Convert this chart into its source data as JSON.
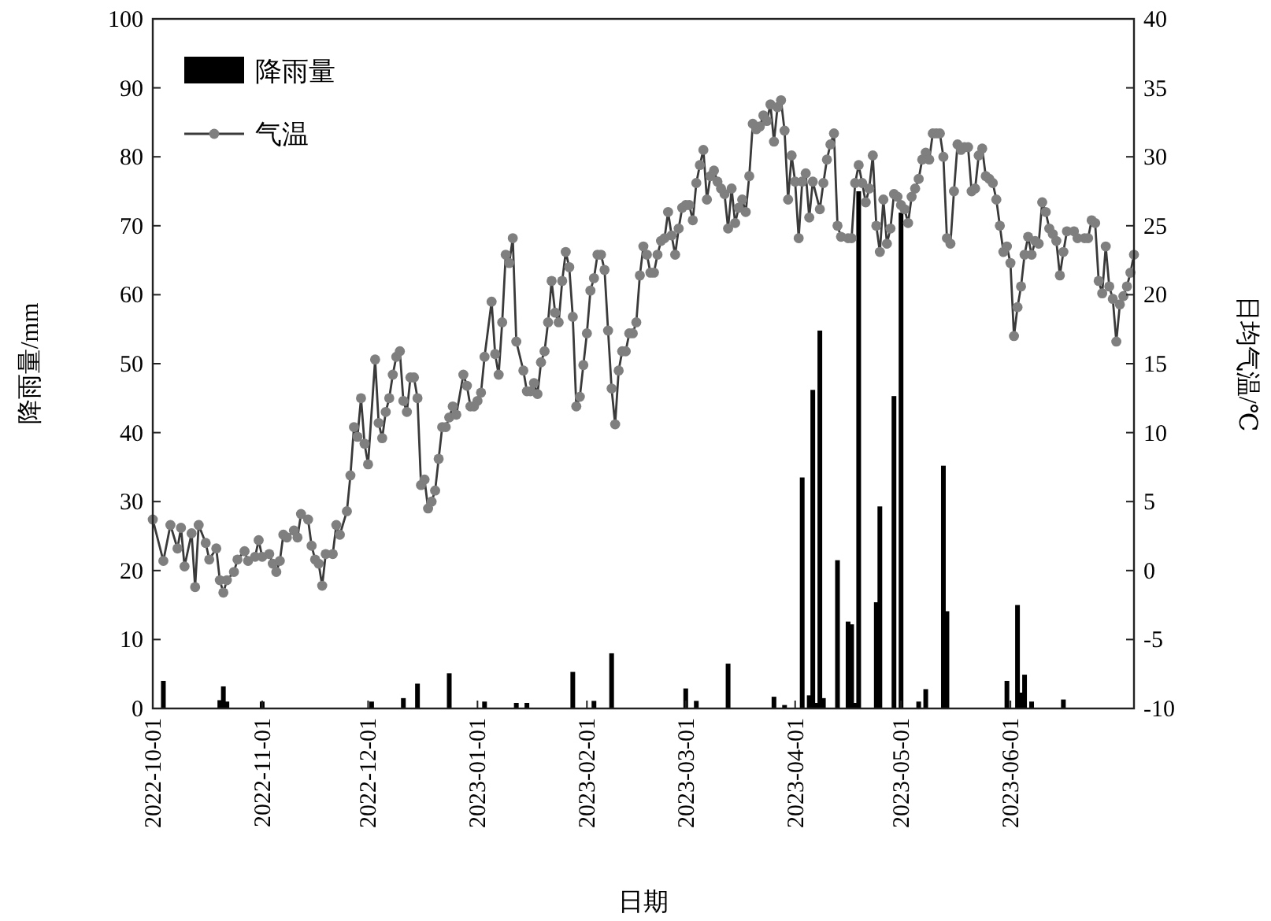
{
  "chart_data": {
    "type": "bar",
    "xlabel": "日期",
    "ylabel": "降雨量/mm",
    "y2label": "日均气温/℃",
    "legend": "top left",
    "xlim": [
      "2022-10-01",
      "2023-07-06"
    ],
    "xticks": [
      "2022-10-01",
      "2022-11-01",
      "2022-12-01",
      "2023-01-01",
      "2023-02-01",
      "2023-03-01",
      "2023-04-01",
      "2023-05-01",
      "2023-06-01"
    ],
    "ylim": [
      0,
      100
    ],
    "yticks": [
      0,
      10,
      20,
      30,
      40,
      50,
      60,
      70,
      80,
      90,
      100
    ],
    "y2lim": [
      -10,
      40
    ],
    "y2ticks": [
      -10,
      -5,
      0,
      5,
      10,
      15,
      20,
      25,
      30,
      35,
      40
    ],
    "series": [
      {
        "name": "降雨量",
        "color": "#000000",
        "x": [
          "2022-10-04",
          "2022-10-20",
          "2022-10-21",
          "2022-10-22",
          "2022-11-01",
          "2022-12-02",
          "2022-12-11",
          "2022-12-15",
          "2022-12-24",
          "2023-01-03",
          "2023-01-12",
          "2023-01-15",
          "2023-01-28",
          "2023-02-03",
          "2023-02-08",
          "2023-03-01",
          "2023-03-04",
          "2023-03-13",
          "2023-03-26",
          "2023-03-29",
          "2023-04-03",
          "2023-04-05",
          "2023-04-06",
          "2023-04-07",
          "2023-04-08",
          "2023-04-09",
          "2023-04-13",
          "2023-04-16",
          "2023-04-17",
          "2023-04-18",
          "2023-04-19",
          "2023-04-24",
          "2023-04-25",
          "2023-04-29",
          "2023-05-01",
          "2023-05-06",
          "2023-05-08",
          "2023-05-13",
          "2023-05-14",
          "2023-05-31",
          "2023-06-03",
          "2023-06-04",
          "2023-06-05",
          "2023-06-07",
          "2023-06-16"
        ],
        "values": [
          4.0,
          1.2,
          3.2,
          1.0,
          1.0,
          1.0,
          1.5,
          3.6,
          5.1,
          1.0,
          0.8,
          0.8,
          5.3,
          1.1,
          8.0,
          2.9,
          1.1,
          6.5,
          1.7,
          0.5,
          33.5,
          1.9,
          46.2,
          0.8,
          54.8,
          1.5,
          21.5,
          12.6,
          12.2,
          0.8,
          75.0,
          15.4,
          29.3,
          45.3,
          71.9,
          1.0,
          2.8,
          35.2,
          14.1,
          4.0,
          15.0,
          2.3,
          4.9,
          1.0,
          1.3
        ]
      },
      {
        "name": "气温",
        "type": "line",
        "axis": "y2",
        "color": "#7f7f7f",
        "marker": "circle",
        "x": [
          "2022-10-01",
          "2022-10-04",
          "2022-10-06",
          "2022-10-08",
          "2022-10-09",
          "2022-10-10",
          "2022-10-12",
          "2022-10-13",
          "2022-10-14",
          "2022-10-16",
          "2022-10-17",
          "2022-10-19",
          "2022-10-20",
          "2022-10-21",
          "2022-10-22",
          "2022-10-24",
          "2022-10-25",
          "2022-10-27",
          "2022-10-28",
          "2022-10-30",
          "2022-10-31",
          "2022-11-01",
          "2022-11-03",
          "2022-11-04",
          "2022-11-05",
          "2022-11-06",
          "2022-11-07",
          "2022-11-08",
          "2022-11-10",
          "2022-11-11",
          "2022-11-12",
          "2022-11-14",
          "2022-11-15",
          "2022-11-16",
          "2022-11-17",
          "2022-11-18",
          "2022-11-19",
          "2022-11-21",
          "2022-11-22",
          "2022-11-23",
          "2022-11-25",
          "2022-11-26",
          "2022-11-27",
          "2022-11-28",
          "2022-11-29",
          "2022-11-30",
          "2022-12-01",
          "2022-12-03",
          "2022-12-04",
          "2022-12-05",
          "2022-12-06",
          "2022-12-07",
          "2022-12-08",
          "2022-12-09",
          "2022-12-10",
          "2022-12-11",
          "2022-12-12",
          "2022-12-13",
          "2022-12-14",
          "2022-12-15",
          "2022-12-16",
          "2022-12-17",
          "2022-12-18",
          "2022-12-19",
          "2022-12-20",
          "2022-12-21",
          "2022-12-22",
          "2022-12-23",
          "2022-12-24",
          "2022-12-25",
          "2022-12-26",
          "2022-12-28",
          "2022-12-29",
          "2022-12-30",
          "2022-12-31",
          "2023-01-01",
          "2023-01-02",
          "2023-01-03",
          "2023-01-05",
          "2023-01-06",
          "2023-01-07",
          "2023-01-08",
          "2023-01-09",
          "2023-01-10",
          "2023-01-11",
          "2023-01-12",
          "2023-01-14",
          "2023-01-15",
          "2023-01-16",
          "2023-01-17",
          "2023-01-18",
          "2023-01-19",
          "2023-01-20",
          "2023-01-21",
          "2023-01-22",
          "2023-01-23",
          "2023-01-24",
          "2023-01-25",
          "2023-01-26",
          "2023-01-27",
          "2023-01-28",
          "2023-01-29",
          "2023-01-30",
          "2023-01-31",
          "2023-02-01",
          "2023-02-02",
          "2023-02-03",
          "2023-02-04",
          "2023-02-05",
          "2023-02-06",
          "2023-02-07",
          "2023-02-08",
          "2023-02-09",
          "2023-02-10",
          "2023-02-11",
          "2023-02-12",
          "2023-02-13",
          "2023-02-14",
          "2023-02-15",
          "2023-02-16",
          "2023-02-17",
          "2023-02-18",
          "2023-02-19",
          "2023-02-20",
          "2023-02-21",
          "2023-02-22",
          "2023-02-23",
          "2023-02-24",
          "2023-02-25",
          "2023-02-26",
          "2023-02-27",
          "2023-02-28",
          "2023-03-01",
          "2023-03-02",
          "2023-03-03",
          "2023-03-04",
          "2023-03-05",
          "2023-03-06",
          "2023-03-07",
          "2023-03-08",
          "2023-03-09",
          "2023-03-10",
          "2023-03-11",
          "2023-03-12",
          "2023-03-13",
          "2023-03-14",
          "2023-03-15",
          "2023-03-16",
          "2023-03-17",
          "2023-03-18",
          "2023-03-19",
          "2023-03-20",
          "2023-03-21",
          "2023-03-22",
          "2023-03-23",
          "2023-03-24",
          "2023-03-25",
          "2023-03-26",
          "2023-03-27",
          "2023-03-28",
          "2023-03-29",
          "2023-03-30",
          "2023-03-31",
          "2023-04-01",
          "2023-04-02",
          "2023-04-03",
          "2023-04-04",
          "2023-04-05",
          "2023-04-06",
          "2023-04-08",
          "2023-04-09",
          "2023-04-10",
          "2023-04-11",
          "2023-04-12",
          "2023-04-13",
          "2023-04-14",
          "2023-04-16",
          "2023-04-17",
          "2023-04-18",
          "2023-04-19",
          "2023-04-20",
          "2023-04-21",
          "2023-04-22",
          "2023-04-23",
          "2023-04-24",
          "2023-04-25",
          "2023-04-26",
          "2023-04-27",
          "2023-04-28",
          "2023-04-29",
          "2023-04-30",
          "2023-05-01",
          "2023-05-02",
          "2023-05-03",
          "2023-05-04",
          "2023-05-05",
          "2023-05-06",
          "2023-05-07",
          "2023-05-08",
          "2023-05-09",
          "2023-05-10",
          "2023-05-11",
          "2023-05-12",
          "2023-05-13",
          "2023-05-14",
          "2023-05-15",
          "2023-05-16",
          "2023-05-17",
          "2023-05-18",
          "2023-05-19",
          "2023-05-20",
          "2023-05-21",
          "2023-05-22",
          "2023-05-23",
          "2023-05-24",
          "2023-05-25",
          "2023-05-26",
          "2023-05-27",
          "2023-05-28",
          "2023-05-29",
          "2023-05-30",
          "2023-05-31",
          "2023-06-01",
          "2023-06-02",
          "2023-06-03",
          "2023-06-04",
          "2023-06-05",
          "2023-06-06",
          "2023-06-07",
          "2023-06-08",
          "2023-06-09",
          "2023-06-10",
          "2023-06-11",
          "2023-06-12",
          "2023-06-13",
          "2023-06-14",
          "2023-06-15",
          "2023-06-16",
          "2023-06-17",
          "2023-06-19",
          "2023-06-20",
          "2023-06-22",
          "2023-06-23",
          "2023-06-24",
          "2023-06-25",
          "2023-06-26",
          "2023-06-27",
          "2023-06-28",
          "2023-06-29",
          "2023-06-30",
          "2023-07-01",
          "2023-07-02",
          "2023-07-03",
          "2023-07-04",
          "2023-07-05",
          "2023-07-06"
        ],
        "values": [
          3.7,
          0.7,
          3.3,
          1.6,
          3.1,
          0.3,
          2.7,
          -1.2,
          3.3,
          2.0,
          0.8,
          1.6,
          -0.7,
          -1.6,
          -0.7,
          -0.1,
          0.8,
          1.4,
          0.7,
          1.0,
          2.2,
          1.0,
          1.2,
          0.5,
          -0.1,
          0.7,
          2.6,
          2.4,
          2.9,
          2.4,
          4.1,
          3.7,
          1.8,
          0.8,
          0.5,
          -1.1,
          1.2,
          1.2,
          3.3,
          2.6,
          4.3,
          6.9,
          10.4,
          9.7,
          12.5,
          9.2,
          7.7,
          15.3,
          10.7,
          9.6,
          11.5,
          12.5,
          14.2,
          15.5,
          15.9,
          12.3,
          11.5,
          14.0,
          14.0,
          12.5,
          6.2,
          6.6,
          4.5,
          5.0,
          5.8,
          8.1,
          10.4,
          10.4,
          11.1,
          11.9,
          11.3,
          14.2,
          13.4,
          11.9,
          11.9,
          12.3,
          12.9,
          15.5,
          19.5,
          15.7,
          14.2,
          18.0,
          22.9,
          22.3,
          24.1,
          16.6,
          14.5,
          13.0,
          13.0,
          13.6,
          12.8,
          15.1,
          15.9,
          18.0,
          21.0,
          18.7,
          18.0,
          21.0,
          23.1,
          22.0,
          18.4,
          11.9,
          12.6,
          14.9,
          17.2,
          20.3,
          21.2,
          22.9,
          22.9,
          21.8,
          17.4,
          13.2,
          10.6,
          14.5,
          15.9,
          15.9,
          17.2,
          17.2,
          18.0,
          21.4,
          23.5,
          22.9,
          21.6,
          21.6,
          22.9,
          23.9,
          24.1,
          26.0,
          24.3,
          22.9,
          24.8,
          26.3,
          26.5,
          26.5,
          25.4,
          28.1,
          29.4,
          30.5,
          26.9,
          28.6,
          29.0,
          28.2,
          27.7,
          27.3,
          24.8,
          27.7,
          25.2,
          26.3,
          26.9,
          26.0,
          28.6,
          32.4,
          32.0,
          32.2,
          33.0,
          32.6,
          33.8,
          31.1,
          33.6,
          34.1,
          31.9,
          26.9,
          30.1,
          28.2,
          24.1,
          28.2,
          28.8,
          25.6,
          28.2,
          26.2,
          28.1,
          29.8,
          30.9,
          31.7,
          25.0,
          24.2,
          24.1,
          24.1,
          28.1,
          29.4,
          28.1,
          26.7,
          27.7,
          30.1,
          25.0,
          23.1,
          26.9,
          23.7,
          24.8,
          27.3,
          27.1,
          26.5,
          26.2,
          25.2,
          27.1,
          27.7,
          28.4,
          29.8,
          30.3,
          29.8,
          31.7,
          31.7,
          31.7,
          30.0,
          24.1,
          23.7,
          27.5,
          30.9,
          30.5,
          30.7,
          30.7,
          27.5,
          27.7,
          30.1,
          30.6,
          28.6,
          28.4,
          28.1,
          26.9,
          25.0,
          23.1,
          23.5,
          22.3,
          17.0,
          19.1,
          20.6,
          22.9,
          24.2,
          22.9,
          23.9,
          23.7,
          26.7,
          26.0,
          24.8,
          24.4,
          23.9,
          21.4,
          23.1,
          24.6,
          24.6,
          24.1,
          24.1,
          24.1,
          25.4,
          25.2,
          21.0,
          20.1,
          23.5,
          20.6,
          19.7,
          16.6,
          19.3,
          19.9,
          20.6,
          21.6,
          22.9
        ]
      }
    ]
  }
}
